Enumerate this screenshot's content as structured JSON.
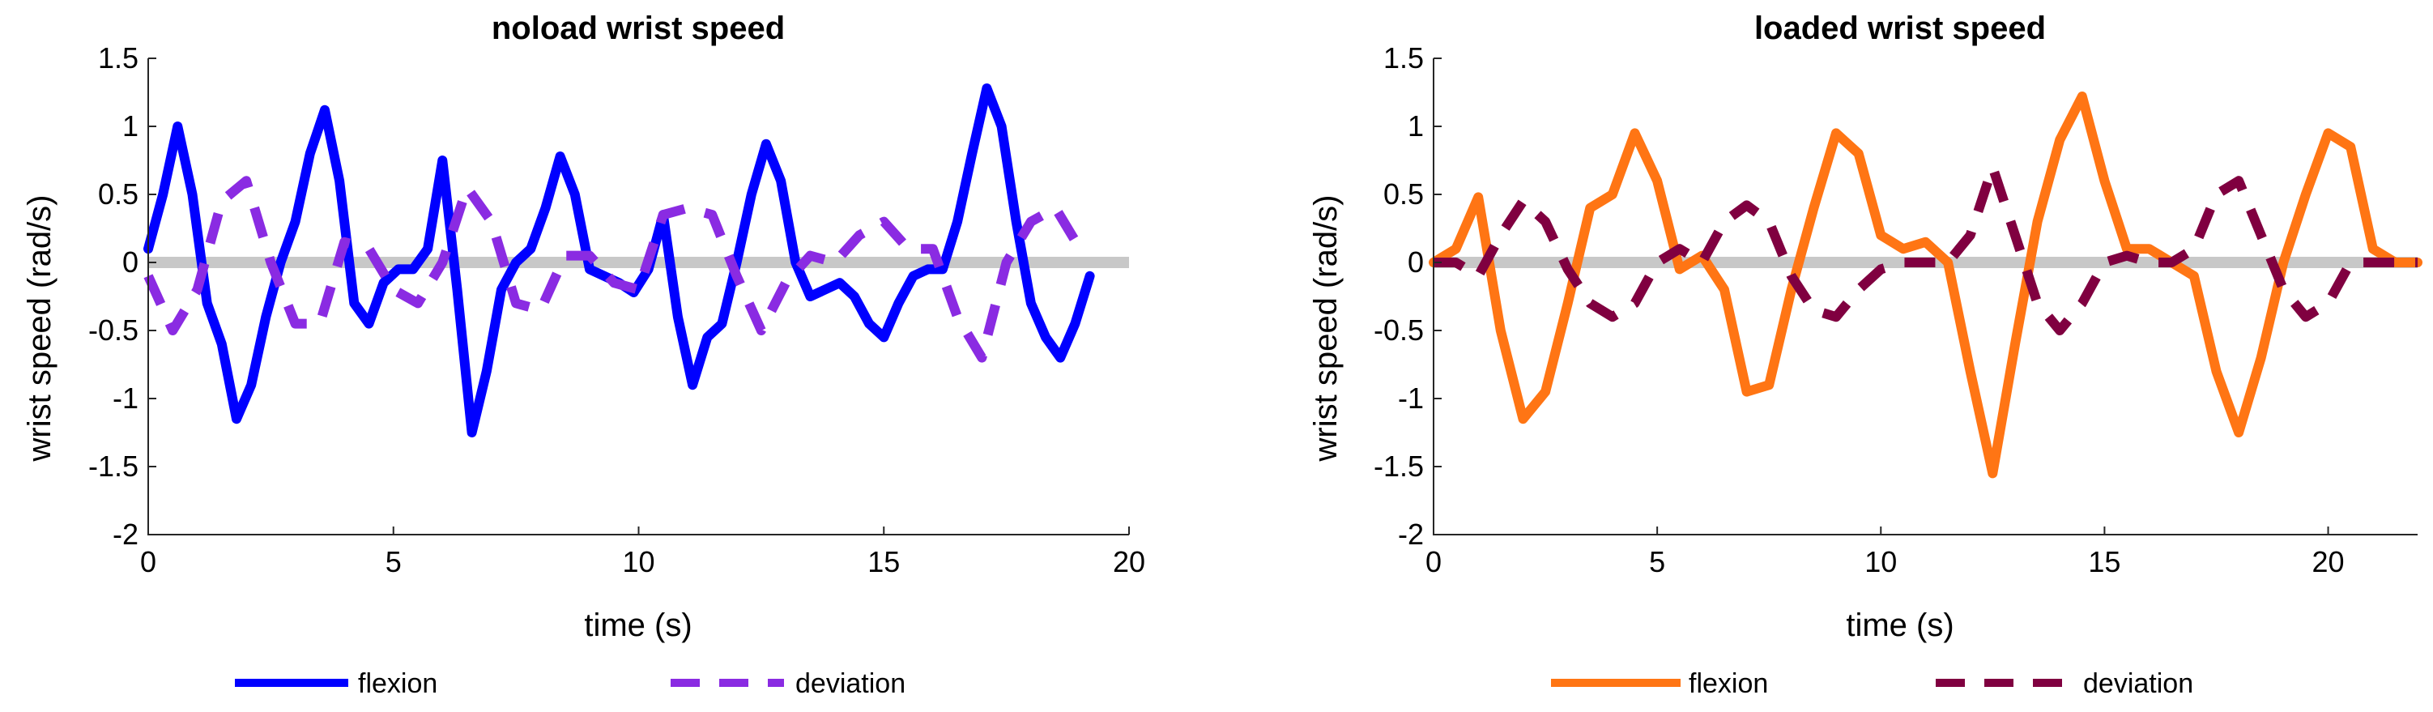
{
  "chart_data": [
    {
      "type": "line",
      "title": "noload wrist speed",
      "xlabel": "time (s)",
      "ylabel": "wrist speed (rad/s)",
      "xlim": [
        0,
        20
      ],
      "ylim": [
        -2,
        1.5
      ],
      "xticks": [
        "0",
        "5",
        "10",
        "15",
        "20"
      ],
      "yticks": [
        "-2",
        "-1.5",
        "-1",
        "-0.5",
        "0",
        "0.5",
        "1",
        "1.5"
      ],
      "zero_line_color": "#c8c8c8",
      "series": [
        {
          "name": "flexion",
          "color": "#0000ff",
          "style": "solid",
          "x": [
            0,
            0.3,
            0.6,
            0.9,
            1.2,
            1.5,
            1.8,
            2.1,
            2.4,
            2.7,
            3.0,
            3.3,
            3.6,
            3.9,
            4.2,
            4.5,
            4.8,
            5.1,
            5.4,
            5.7,
            6.0,
            6.3,
            6.6,
            6.9,
            7.2,
            7.5,
            7.8,
            8.1,
            8.4,
            8.7,
            9.0,
            9.3,
            9.6,
            9.9,
            10.2,
            10.5,
            10.8,
            11.1,
            11.4,
            11.7,
            12.0,
            12.3,
            12.6,
            12.9,
            13.2,
            13.5,
            13.8,
            14.1,
            14.4,
            14.7,
            15.0,
            15.3,
            15.6,
            15.9,
            16.2,
            16.5,
            16.8,
            17.1,
            17.4,
            17.7,
            18.0,
            18.3,
            18.6,
            18.9,
            19.2
          ],
          "values": [
            0.1,
            0.5,
            1.0,
            0.5,
            -0.3,
            -0.6,
            -1.15,
            -0.9,
            -0.4,
            0.0,
            0.3,
            0.8,
            1.12,
            0.6,
            -0.3,
            -0.45,
            -0.15,
            -0.05,
            -0.05,
            0.1,
            0.75,
            -0.2,
            -1.25,
            -0.8,
            -0.2,
            0.0,
            0.1,
            0.4,
            0.78,
            0.5,
            -0.05,
            -0.1,
            -0.15,
            -0.22,
            -0.05,
            0.35,
            -0.4,
            -0.9,
            -0.55,
            -0.45,
            0.0,
            0.5,
            0.87,
            0.6,
            0.0,
            -0.25,
            -0.2,
            -0.15,
            -0.25,
            -0.45,
            -0.55,
            -0.3,
            -0.1,
            -0.05,
            -0.05,
            0.3,
            0.8,
            1.28,
            1.0,
            0.3,
            -0.3,
            -0.55,
            -0.7,
            -0.45,
            -0.1
          ]
        },
        {
          "name": "deviation",
          "color": "#8a2be2",
          "style": "dashed",
          "x": [
            0,
            0.5,
            1.0,
            1.5,
            2.0,
            2.5,
            3.0,
            3.5,
            4.0,
            4.5,
            5.0,
            5.5,
            6.0,
            6.5,
            7.0,
            7.5,
            8.0,
            8.5,
            9.0,
            9.5,
            10.0,
            10.5,
            11.0,
            11.5,
            12.0,
            12.5,
            13.0,
            13.5,
            14.0,
            14.5,
            15.0,
            15.5,
            16.0,
            16.5,
            17.0,
            17.5,
            18.0,
            18.5,
            19.0
          ],
          "values": [
            -0.1,
            -0.5,
            -0.2,
            0.45,
            0.6,
            0.0,
            -0.45,
            -0.45,
            0.15,
            0.1,
            -0.2,
            -0.3,
            0.0,
            0.55,
            0.3,
            -0.3,
            -0.35,
            0.05,
            0.05,
            -0.15,
            -0.2,
            0.35,
            0.4,
            0.35,
            -0.1,
            -0.5,
            -0.15,
            0.05,
            0.0,
            0.2,
            0.3,
            0.1,
            0.1,
            -0.4,
            -0.7,
            0.0,
            0.3,
            0.4,
            0.1
          ]
        }
      ]
    },
    {
      "type": "line",
      "title": "loaded wrist speed",
      "xlabel": "time (s)",
      "ylabel": "wrist speed (rad/s)",
      "xlim": [
        0,
        22
      ],
      "ylim": [
        -2,
        1.5
      ],
      "xticks": [
        "0",
        "5",
        "10",
        "15",
        "20"
      ],
      "yticks": [
        "-2",
        "-1.5",
        "-1",
        "-0.5",
        "0",
        "0.5",
        "1",
        "1.5"
      ],
      "zero_line_color": "#c8c8c8",
      "series": [
        {
          "name": "flexion",
          "color": "#ff7514",
          "style": "solid",
          "x": [
            0,
            0.5,
            1.0,
            1.5,
            2.0,
            2.5,
            3.0,
            3.5,
            4.0,
            4.5,
            5.0,
            5.5,
            6.0,
            6.5,
            7.0,
            7.5,
            8.0,
            8.5,
            9.0,
            9.5,
            10.0,
            10.5,
            11.0,
            11.5,
            12.0,
            12.5,
            13.0,
            13.5,
            14.0,
            14.5,
            15.0,
            15.5,
            16.0,
            16.5,
            17.0,
            17.5,
            18.0,
            18.5,
            19.0,
            19.5,
            20.0,
            20.5,
            21.0,
            21.5,
            22.0
          ],
          "values": [
            0.0,
            0.1,
            0.48,
            -0.5,
            -1.15,
            -0.95,
            -0.3,
            0.4,
            0.5,
            0.95,
            0.6,
            -0.05,
            0.05,
            -0.2,
            -0.95,
            -0.9,
            -0.2,
            0.4,
            0.95,
            0.8,
            0.2,
            0.1,
            0.15,
            0.0,
            -0.8,
            -1.55,
            -0.6,
            0.3,
            0.9,
            1.22,
            0.6,
            0.1,
            0.1,
            0.0,
            -0.1,
            -0.8,
            -1.25,
            -0.7,
            0.0,
            0.5,
            0.95,
            0.85,
            0.1,
            0.0,
            0.0
          ]
        },
        {
          "name": "deviation",
          "color": "#800040",
          "style": "dashed",
          "x": [
            0,
            0.5,
            1.0,
            1.5,
            2.0,
            2.5,
            3.0,
            3.5,
            4.0,
            4.5,
            5.0,
            5.5,
            6.0,
            6.5,
            7.0,
            7.5,
            8.0,
            8.5,
            9.0,
            9.5,
            10.0,
            10.5,
            11.0,
            11.5,
            12.0,
            12.5,
            13.0,
            13.5,
            14.0,
            14.5,
            15.0,
            15.5,
            16.0,
            16.5,
            17.0,
            17.5,
            18.0,
            18.5,
            19.0,
            19.5,
            20.0,
            20.5,
            21.0,
            21.5,
            22.0
          ],
          "values": [
            0.0,
            0.0,
            -0.1,
            0.2,
            0.45,
            0.3,
            -0.05,
            -0.3,
            -0.4,
            -0.3,
            0.0,
            0.1,
            0.0,
            0.3,
            0.42,
            0.3,
            -0.1,
            -0.35,
            -0.4,
            -0.2,
            -0.05,
            0.0,
            0.0,
            0.0,
            0.2,
            0.7,
            0.2,
            -0.3,
            -0.5,
            -0.3,
            0.0,
            0.05,
            0.0,
            0.0,
            0.1,
            0.5,
            0.6,
            0.2,
            -0.2,
            -0.4,
            -0.3,
            0.0,
            0.0,
            0.0,
            0.0
          ]
        }
      ]
    }
  ]
}
